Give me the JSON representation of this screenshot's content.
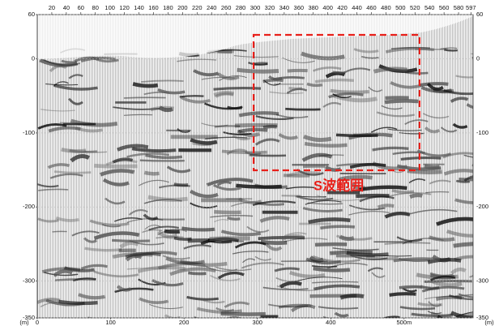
{
  "chart_data": {
    "type": "seismic-section",
    "annotation": "S波範囲",
    "unit": "(m)",
    "ylim": [
      -350,
      60
    ],
    "yticks": [
      60,
      0,
      -100,
      -200,
      -300,
      -350
    ],
    "xlim": [
      0,
      594
    ],
    "xticks": [
      0,
      100,
      200,
      300,
      400,
      {
        "value": 500,
        "label": "500m"
      }
    ],
    "x2lim": [
      0,
      600
    ],
    "x2ticks": [
      20,
      40,
      60,
      80,
      100,
      120,
      140,
      160,
      180,
      200,
      220,
      240,
      260,
      280,
      300,
      320,
      340,
      360,
      380,
      400,
      420,
      440,
      460,
      480,
      500,
      520,
      540,
      560,
      580,
      597
    ],
    "grid": true
  }
}
